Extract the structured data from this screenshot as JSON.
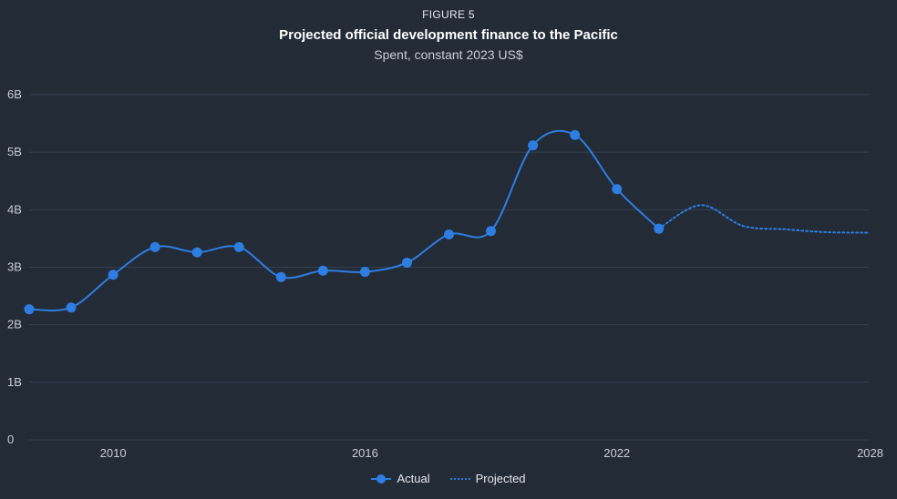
{
  "figure": {
    "label": "FIGURE 5",
    "title": "Projected official development finance to the Pacific",
    "subtitle": "Spent, constant 2023 US$"
  },
  "colors": {
    "background": "#232b37",
    "series": "#2e7de0",
    "grid": "#344050"
  },
  "legend": {
    "actual_label": "Actual",
    "projected_label": "Projected"
  },
  "chart_data": {
    "type": "line",
    "title": "Projected official development finance to the Pacific",
    "subtitle": "Spent, constant 2023 US$",
    "xlabel": "",
    "ylabel": "",
    "xlim": [
      2008,
      2028
    ],
    "ylim": [
      0,
      6
    ],
    "x_ticks": [
      2010,
      2016,
      2022,
      2028
    ],
    "y_ticks": [
      0,
      1,
      2,
      3,
      4,
      5,
      6
    ],
    "y_tick_labels": [
      "0",
      "1B",
      "2B",
      "3B",
      "4B",
      "5B",
      "6B"
    ],
    "grid": true,
    "legend_position": "bottom-center",
    "series": [
      {
        "name": "Actual",
        "style": "solid-with-markers",
        "x": [
          2008,
          2009,
          2010,
          2011,
          2012,
          2013,
          2014,
          2015,
          2016,
          2017,
          2018,
          2019,
          2020,
          2021,
          2022,
          2023
        ],
        "values": [
          2.27,
          2.3,
          2.87,
          3.35,
          3.26,
          3.35,
          2.83,
          2.94,
          2.92,
          3.08,
          3.57,
          3.63,
          5.12,
          5.3,
          4.36,
          3.67
        ]
      },
      {
        "name": "Projected",
        "style": "dotted",
        "x": [
          2023,
          2024,
          2025,
          2026,
          2027,
          2028
        ],
        "values": [
          3.67,
          4.08,
          3.72,
          3.66,
          3.61,
          3.6
        ]
      }
    ]
  }
}
